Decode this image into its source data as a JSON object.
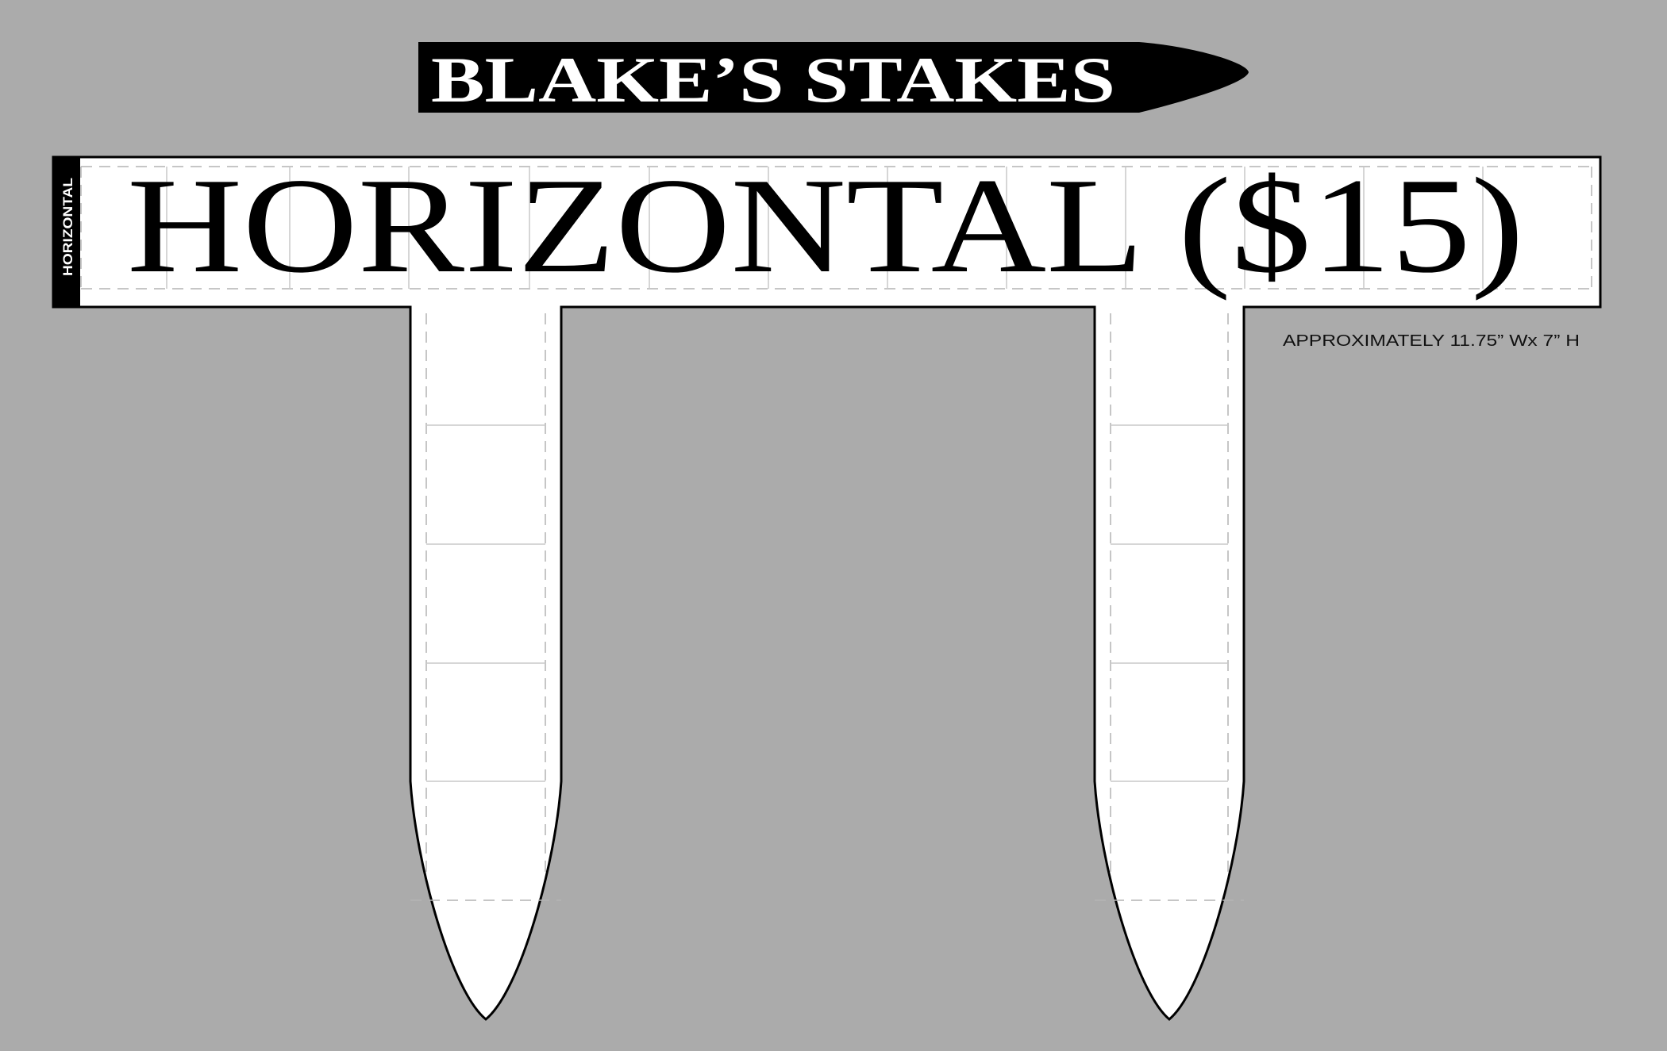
{
  "brand": {
    "title": "BLAKE’S STAKES"
  },
  "sign": {
    "side_label": "HORIZONTAL",
    "main_text": "HORIZONTAL ($15)"
  },
  "dimensions_note": "APPROXIMATELY 11.75” Wx 7” H",
  "colors": {
    "background": "#ababab",
    "stake_fill": "#ffffff",
    "outline": "#000000",
    "guide_dashes": "#b4b4b4"
  }
}
